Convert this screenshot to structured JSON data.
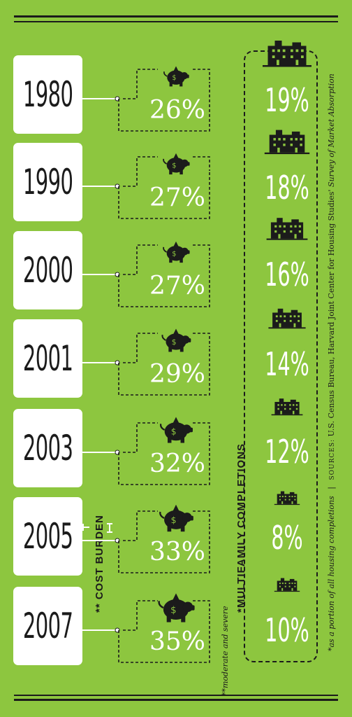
{
  "chart_data": {
    "type": "table",
    "years": [
      "1980",
      "1990",
      "2000",
      "2001",
      "2003",
      "2005",
      "2007"
    ],
    "series": [
      {
        "name": "** COST BURDEN",
        "values": [
          26,
          27,
          27,
          29,
          32,
          33,
          35
        ],
        "labels": [
          "26%",
          "27%",
          "27%",
          "29%",
          "32%",
          "33%",
          "35%"
        ]
      },
      {
        "name": "*MULTIFAMILY COMPLETIONS",
        "values": [
          19,
          18,
          16,
          14,
          12,
          8,
          10
        ],
        "labels": [
          "19%",
          "18%",
          "16%",
          "14%",
          "12%",
          "8%",
          "10%"
        ]
      }
    ]
  },
  "labels": {
    "cost_burden": "** COST BURDEN",
    "cost_burden_note": "**moderate and severe",
    "multifamily": "*MULTIFAMILY COMPLETIONS",
    "multifamily_note": "*as a portion of all housing completions",
    "separator": "|",
    "sources_label": "SOURCES:",
    "sources_text": "U.S. Census Bureau, Harvard Joint Center for Housing Studies'",
    "sources_title": "Survey of Market Absorption"
  },
  "icons": {
    "cost": "piggy-bank-icon",
    "multifamily": "apartment-building-icon"
  },
  "colors": {
    "background": "#8dc63f",
    "ink": "#1b1b1b",
    "text": "#ffffff"
  }
}
